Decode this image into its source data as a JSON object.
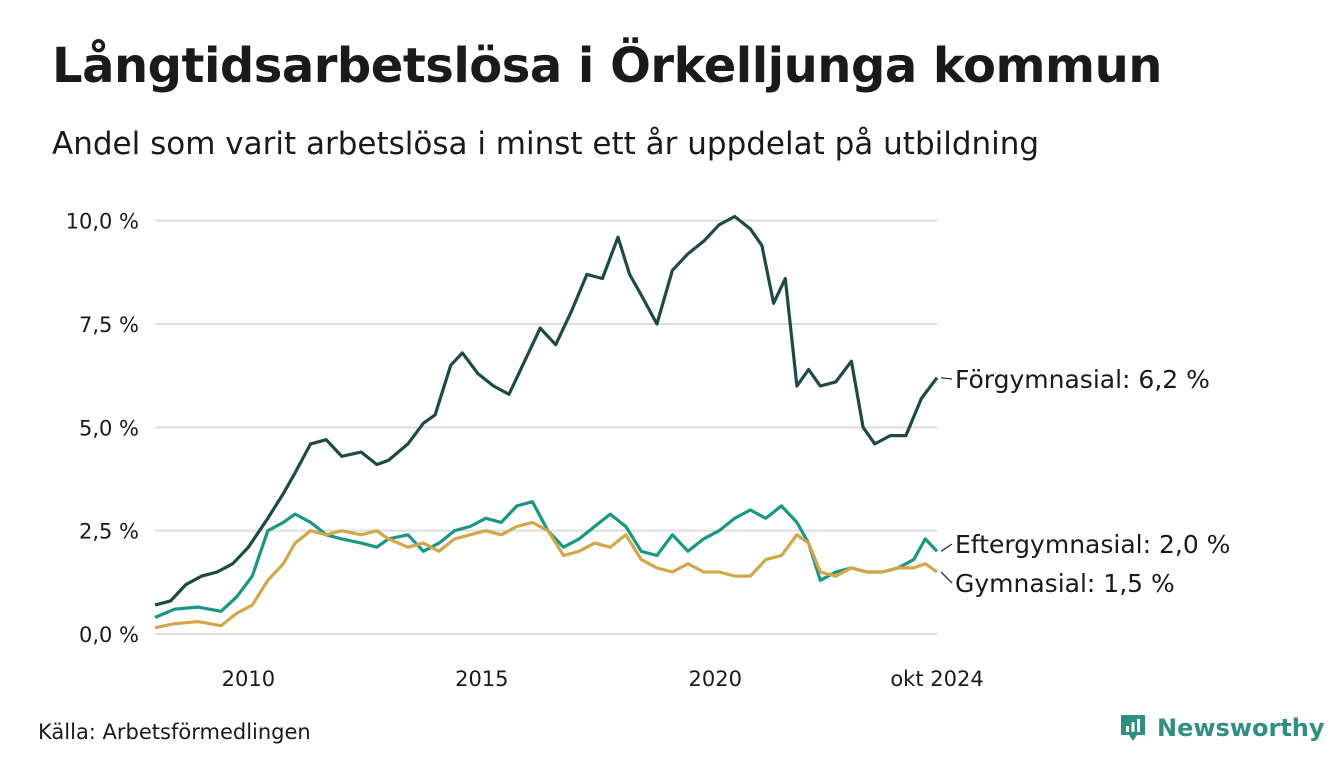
{
  "title": "Långtidsarbetslösa i Örkelljunga kommun",
  "subtitle": "Andel som varit arbetslösa i minst ett år uppdelat på utbildning",
  "source": "Källa: Arbetsförmedlingen",
  "brand": "Newsworthy",
  "icons": {
    "brand_logo": "newsworthy-logo-icon"
  },
  "colors": {
    "forgymnasial": "#1f4a44",
    "eftergymnasial": "#1a9683",
    "gymnasial": "#d3a64a",
    "grid": "#dddddd",
    "brand": "#2f8f83"
  },
  "chart_data": {
    "type": "line",
    "x_tick_labels": [
      "2010",
      "2015",
      "2020",
      "okt 2024"
    ],
    "x_tick_dates": [
      "2010-01",
      "2015-01",
      "2020-01",
      "2024-10"
    ],
    "x_range": [
      "2008-01",
      "2024-10"
    ],
    "y_tick_labels": [
      "0,0 %",
      "2,5 %",
      "5,0 %",
      "7,5 %",
      "10,0 %"
    ],
    "y_ticks": [
      0,
      2.5,
      5.0,
      7.5,
      10.0
    ],
    "ylim": [
      0,
      10.5
    ],
    "grid": "horizontal",
    "xlabel": "",
    "ylabel": "",
    "series": [
      {
        "name": "Förgymnasial",
        "end_label": "Förgymnasial: 6,2 %",
        "color": "#1f4a44",
        "points": [
          [
            "2008-01",
            0.7
          ],
          [
            "2008-05",
            0.8
          ],
          [
            "2008-09",
            1.2
          ],
          [
            "2009-01",
            1.4
          ],
          [
            "2009-05",
            1.5
          ],
          [
            "2009-09",
            1.7
          ],
          [
            "2010-01",
            2.1
          ],
          [
            "2010-06",
            2.8
          ],
          [
            "2010-10",
            3.4
          ],
          [
            "2011-01",
            3.9
          ],
          [
            "2011-05",
            4.6
          ],
          [
            "2011-09",
            4.7
          ],
          [
            "2012-01",
            4.3
          ],
          [
            "2012-06",
            4.4
          ],
          [
            "2012-10",
            4.1
          ],
          [
            "2013-01",
            4.2
          ],
          [
            "2013-06",
            4.6
          ],
          [
            "2013-10",
            5.1
          ],
          [
            "2014-01",
            5.3
          ],
          [
            "2014-05",
            6.5
          ],
          [
            "2014-08",
            6.8
          ],
          [
            "2014-12",
            6.3
          ],
          [
            "2015-04",
            6.0
          ],
          [
            "2015-08",
            5.8
          ],
          [
            "2015-12",
            6.6
          ],
          [
            "2016-04",
            7.4
          ],
          [
            "2016-08",
            7.0
          ],
          [
            "2016-12",
            7.8
          ],
          [
            "2017-04",
            8.7
          ],
          [
            "2017-08",
            8.6
          ],
          [
            "2017-12",
            9.6
          ],
          [
            "2018-03",
            8.7
          ],
          [
            "2018-06",
            8.2
          ],
          [
            "2018-10",
            7.5
          ],
          [
            "2019-02",
            8.8
          ],
          [
            "2019-06",
            9.2
          ],
          [
            "2019-10",
            9.5
          ],
          [
            "2020-02",
            9.9
          ],
          [
            "2020-06",
            10.1
          ],
          [
            "2020-10",
            9.8
          ],
          [
            "2021-01",
            9.4
          ],
          [
            "2021-04",
            8.0
          ],
          [
            "2021-07",
            8.6
          ],
          [
            "2021-10",
            6.0
          ],
          [
            "2022-01",
            6.4
          ],
          [
            "2022-04",
            6.0
          ],
          [
            "2022-08",
            6.1
          ],
          [
            "2022-12",
            6.6
          ],
          [
            "2023-03",
            5.0
          ],
          [
            "2023-06",
            4.6
          ],
          [
            "2023-10",
            4.8
          ],
          [
            "2024-02",
            4.8
          ],
          [
            "2024-06",
            5.7
          ],
          [
            "2024-10",
            6.2
          ]
        ]
      },
      {
        "name": "Eftergymnasial",
        "end_label": "Eftergymnasial: 2,0 %",
        "color": "#1a9683",
        "points": [
          [
            "2008-01",
            0.4
          ],
          [
            "2008-06",
            0.6
          ],
          [
            "2008-12",
            0.65
          ],
          [
            "2009-06",
            0.55
          ],
          [
            "2009-10",
            0.9
          ],
          [
            "2010-02",
            1.4
          ],
          [
            "2010-06",
            2.5
          ],
          [
            "2010-10",
            2.7
          ],
          [
            "2011-01",
            2.9
          ],
          [
            "2011-05",
            2.7
          ],
          [
            "2011-09",
            2.4
          ],
          [
            "2012-01",
            2.3
          ],
          [
            "2012-06",
            2.2
          ],
          [
            "2012-10",
            2.1
          ],
          [
            "2013-01",
            2.3
          ],
          [
            "2013-06",
            2.4
          ],
          [
            "2013-10",
            2.0
          ],
          [
            "2014-02",
            2.2
          ],
          [
            "2014-06",
            2.5
          ],
          [
            "2014-10",
            2.6
          ],
          [
            "2015-02",
            2.8
          ],
          [
            "2015-06",
            2.7
          ],
          [
            "2015-10",
            3.1
          ],
          [
            "2016-02",
            3.2
          ],
          [
            "2016-06",
            2.5
          ],
          [
            "2016-10",
            2.1
          ],
          [
            "2017-02",
            2.3
          ],
          [
            "2017-06",
            2.6
          ],
          [
            "2017-10",
            2.9
          ],
          [
            "2018-02",
            2.6
          ],
          [
            "2018-06",
            2.0
          ],
          [
            "2018-10",
            1.9
          ],
          [
            "2019-02",
            2.4
          ],
          [
            "2019-06",
            2.0
          ],
          [
            "2019-10",
            2.3
          ],
          [
            "2020-02",
            2.5
          ],
          [
            "2020-06",
            2.8
          ],
          [
            "2020-10",
            3.0
          ],
          [
            "2021-02",
            2.8
          ],
          [
            "2021-06",
            3.1
          ],
          [
            "2021-10",
            2.7
          ],
          [
            "2022-01",
            2.2
          ],
          [
            "2022-04",
            1.3
          ],
          [
            "2022-08",
            1.5
          ],
          [
            "2022-12",
            1.6
          ],
          [
            "2023-04",
            1.5
          ],
          [
            "2023-08",
            1.5
          ],
          [
            "2023-12",
            1.6
          ],
          [
            "2024-04",
            1.8
          ],
          [
            "2024-07",
            2.3
          ],
          [
            "2024-10",
            2.0
          ]
        ]
      },
      {
        "name": "Gymnasial",
        "end_label": "Gymnasial: 1,5 %",
        "color": "#d3a64a",
        "points": [
          [
            "2008-01",
            0.15
          ],
          [
            "2008-06",
            0.25
          ],
          [
            "2008-12",
            0.3
          ],
          [
            "2009-06",
            0.2
          ],
          [
            "2009-10",
            0.5
          ],
          [
            "2010-02",
            0.7
          ],
          [
            "2010-06",
            1.3
          ],
          [
            "2010-10",
            1.7
          ],
          [
            "2011-01",
            2.2
          ],
          [
            "2011-05",
            2.5
          ],
          [
            "2011-09",
            2.4
          ],
          [
            "2012-01",
            2.5
          ],
          [
            "2012-06",
            2.4
          ],
          [
            "2012-10",
            2.5
          ],
          [
            "2013-01",
            2.3
          ],
          [
            "2013-06",
            2.1
          ],
          [
            "2013-10",
            2.2
          ],
          [
            "2014-02",
            2.0
          ],
          [
            "2014-06",
            2.3
          ],
          [
            "2014-10",
            2.4
          ],
          [
            "2015-02",
            2.5
          ],
          [
            "2015-06",
            2.4
          ],
          [
            "2015-10",
            2.6
          ],
          [
            "2016-02",
            2.7
          ],
          [
            "2016-06",
            2.5
          ],
          [
            "2016-10",
            1.9
          ],
          [
            "2017-02",
            2.0
          ],
          [
            "2017-06",
            2.2
          ],
          [
            "2017-10",
            2.1
          ],
          [
            "2018-02",
            2.4
          ],
          [
            "2018-06",
            1.8
          ],
          [
            "2018-10",
            1.6
          ],
          [
            "2019-02",
            1.5
          ],
          [
            "2019-06",
            1.7
          ],
          [
            "2019-10",
            1.5
          ],
          [
            "2020-02",
            1.5
          ],
          [
            "2020-06",
            1.4
          ],
          [
            "2020-10",
            1.4
          ],
          [
            "2021-02",
            1.8
          ],
          [
            "2021-06",
            1.9
          ],
          [
            "2021-10",
            2.4
          ],
          [
            "2022-01",
            2.2
          ],
          [
            "2022-04",
            1.5
          ],
          [
            "2022-08",
            1.4
          ],
          [
            "2022-12",
            1.6
          ],
          [
            "2023-04",
            1.5
          ],
          [
            "2023-08",
            1.5
          ],
          [
            "2023-12",
            1.6
          ],
          [
            "2024-04",
            1.6
          ],
          [
            "2024-07",
            1.7
          ],
          [
            "2024-10",
            1.5
          ]
        ]
      }
    ]
  }
}
